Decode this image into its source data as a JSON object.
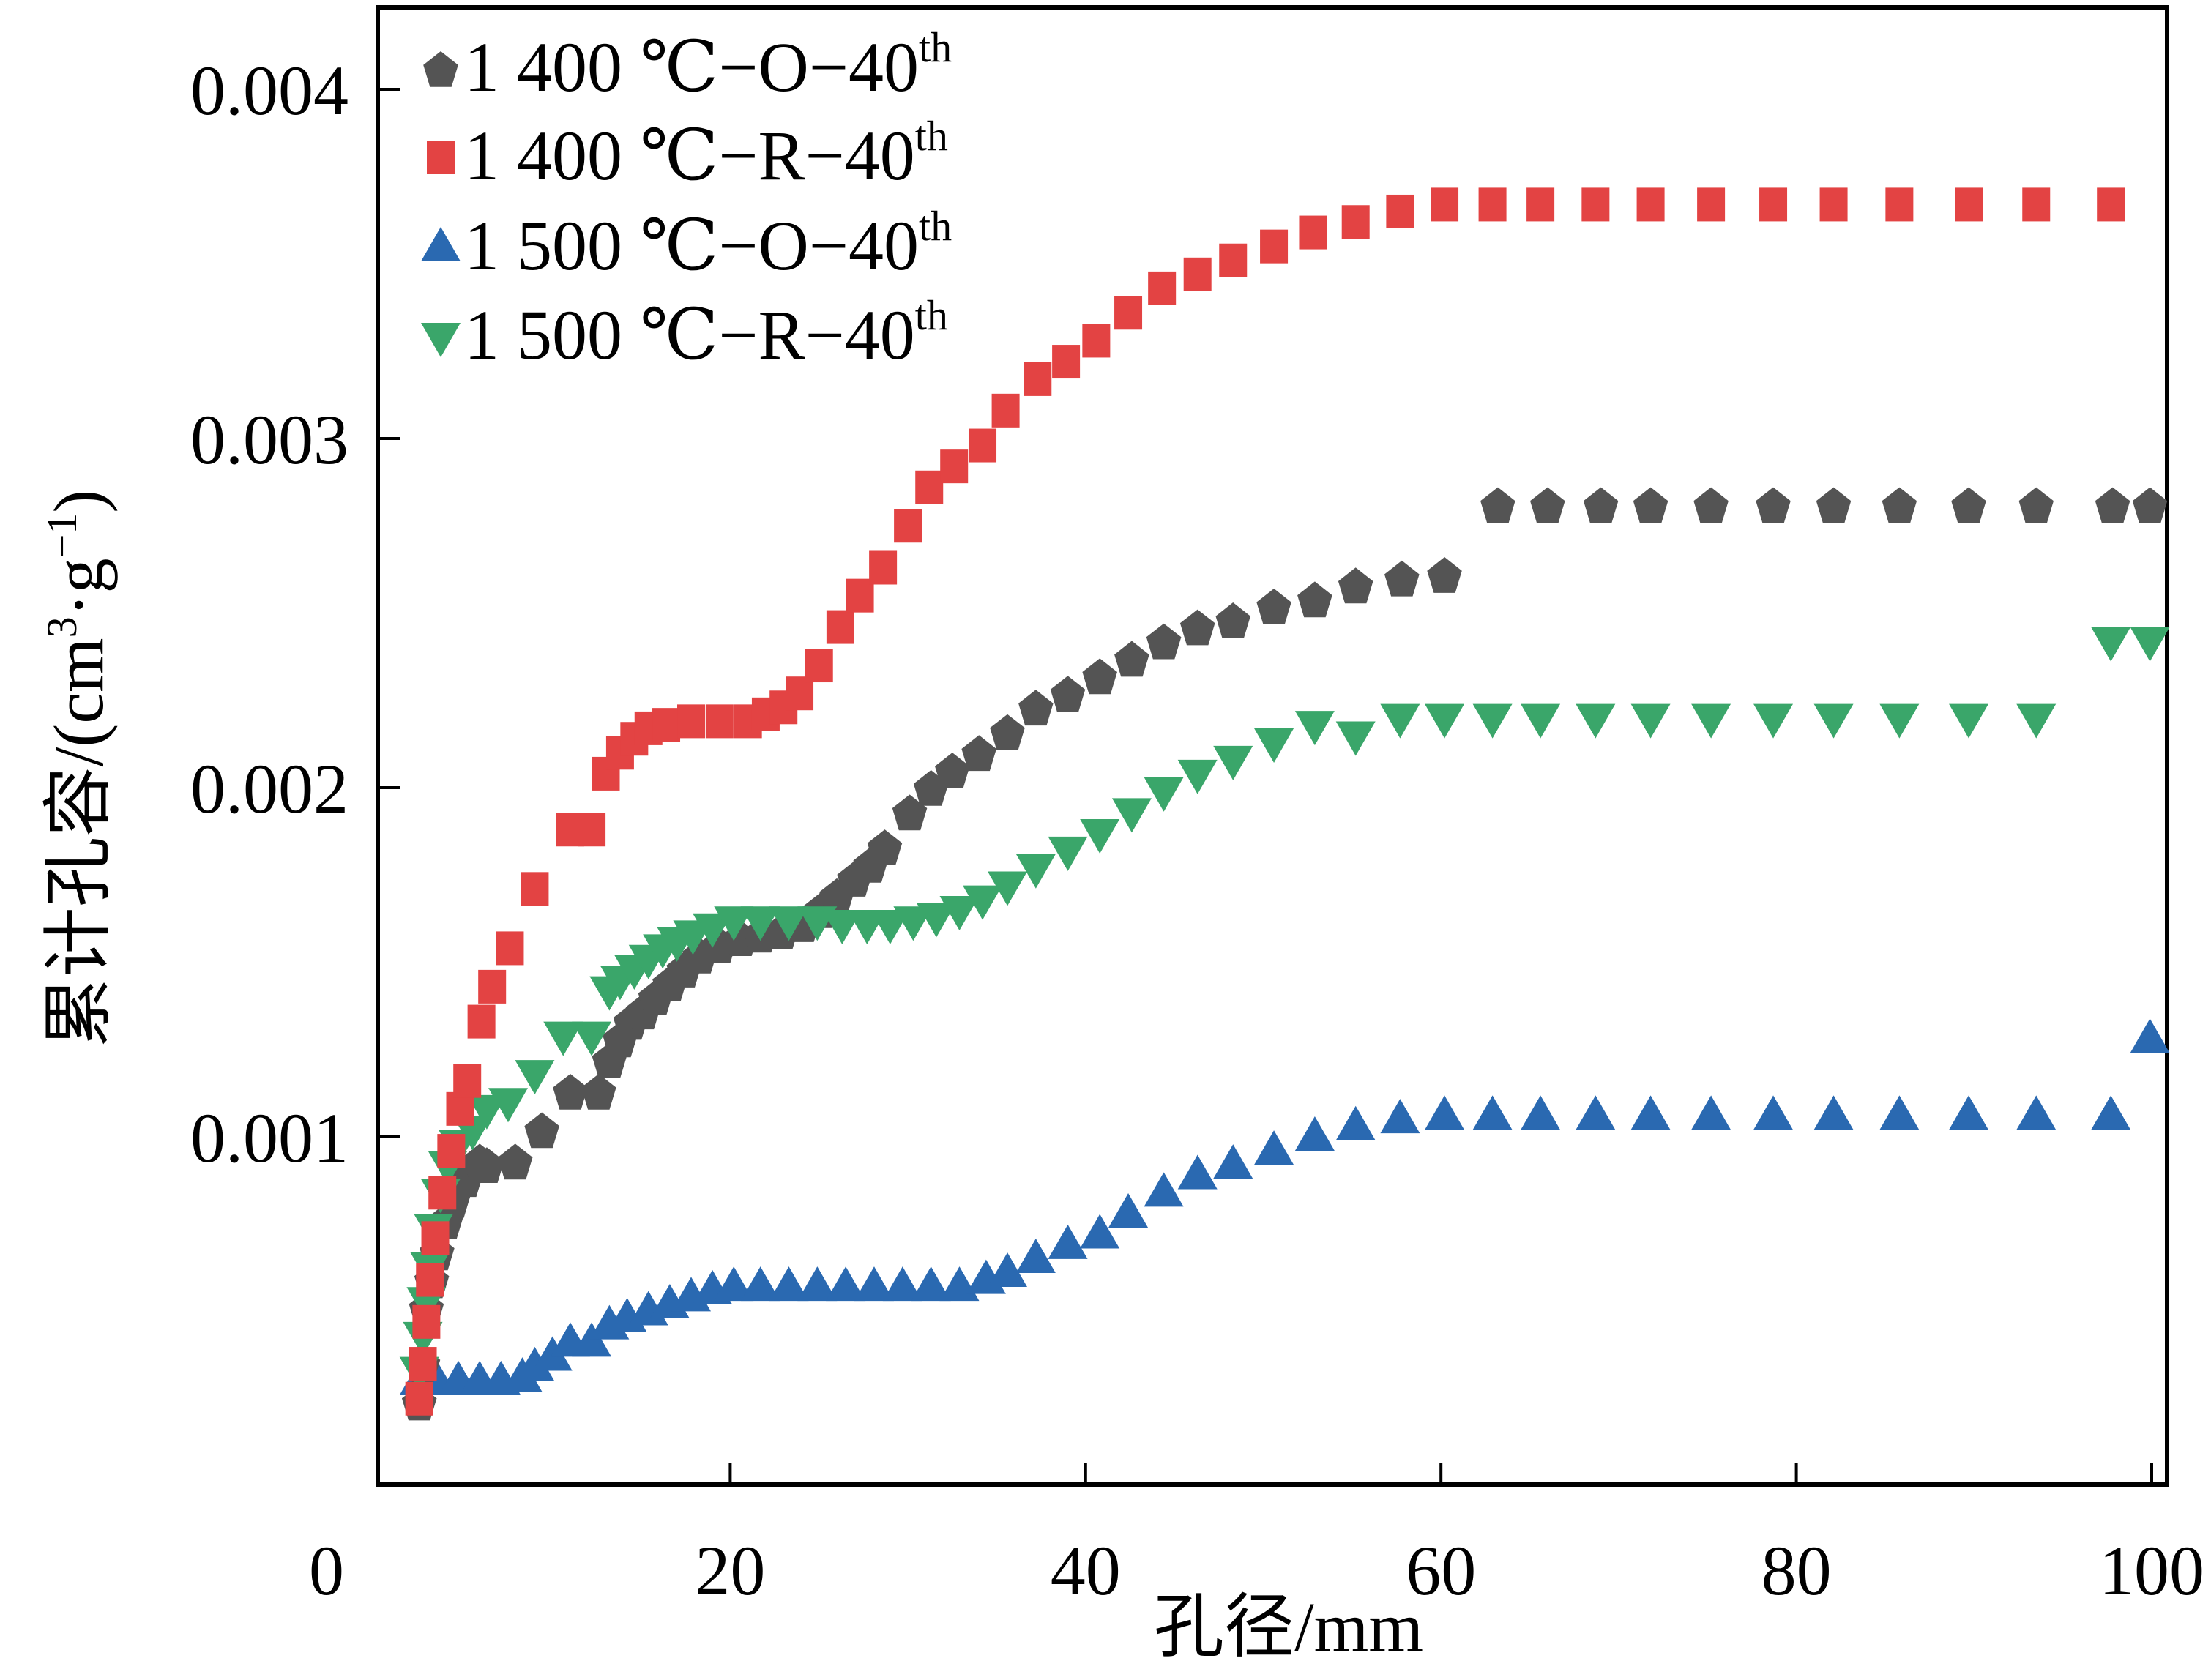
{
  "chart_data": {
    "type": "scatter",
    "title": "",
    "xlabel": "孔径/mm",
    "ylabel_main": "累计孔容/(cm",
    "ylabel_sup1": "3",
    "ylabel_mid": "·g",
    "ylabel_sup2": "−1",
    "ylabel_end": ")",
    "ylabel": "累计孔容/(cm³·g⁻¹)",
    "xlim": [
      0,
      100.9
    ],
    "ylim": [
      0,
      0.00424
    ],
    "xticks": [
      0,
      20,
      40,
      60,
      80,
      100
    ],
    "xtick_labels": [
      "0",
      "20",
      "40",
      "60",
      "80",
      "100"
    ],
    "yticks": [
      0.001,
      0.002,
      0.003,
      0.004
    ],
    "ytick_labels": [
      "0.001",
      "0.002",
      "0.003",
      "0.004"
    ],
    "grid": false,
    "legend_position": "top-left",
    "series": [
      {
        "name": "1 400 ℃−O−40th",
        "label_main": "1 400 ℃−O−40",
        "label_sup": "th",
        "marker": "pentagon",
        "color": "#545454",
        "x": [
          2.5,
          2.7,
          2.9,
          3.2,
          3.5,
          4.0,
          4.4,
          5.1,
          5.9,
          6.3,
          7.9,
          9.4,
          11.0,
          12.6,
          13.2,
          13.8,
          14.4,
          15.1,
          15.8,
          16.6,
          17.4,
          18.3,
          19.4,
          20.6,
          21.7,
          22.9,
          24.1,
          25.1,
          26.0,
          27.0,
          27.9,
          28.7,
          30.1,
          31.3,
          32.5,
          34.0,
          35.6,
          37.2,
          39.0,
          40.8,
          42.6,
          44.4,
          46.3,
          48.3,
          50.6,
          52.9,
          55.2,
          57.8,
          60.2,
          63.2,
          66.0,
          69.0,
          71.8,
          75.2,
          78.7,
          82.1,
          85.8,
          89.7,
          93.5,
          97.8,
          99.9
        ],
        "y": [
          0.00024,
          0.00035,
          0.00051,
          0.00059,
          0.00067,
          0.00076,
          0.00082,
          0.00088,
          0.00093,
          0.00092,
          0.00093,
          0.00102,
          0.00113,
          0.00113,
          0.00122,
          0.00128,
          0.00133,
          0.00136,
          0.0014,
          0.00144,
          0.00148,
          0.00152,
          0.00155,
          0.00157,
          0.00158,
          0.00159,
          0.00161,
          0.00165,
          0.00169,
          0.00174,
          0.00178,
          0.00183,
          0.00193,
          0.002,
          0.00205,
          0.0021,
          0.00216,
          0.00223,
          0.00227,
          0.00232,
          0.00237,
          0.00242,
          0.00246,
          0.00248,
          0.00252,
          0.00254,
          0.00258,
          0.0026,
          0.00261,
          0.00281,
          0.00281,
          0.00281,
          0.00281,
          0.00281,
          0.00281,
          0.00281,
          0.00281,
          0.00281,
          0.00281,
          0.00281,
          0.00281
        ]
      },
      {
        "name": "1 400 ℃−R−40th",
        "label_main": "1 400 ℃−R−40",
        "label_sup": "th",
        "marker": "square",
        "color": "#e34343",
        "x": [
          2.5,
          2.7,
          2.9,
          3.1,
          3.4,
          3.8,
          4.3,
          4.8,
          5.2,
          6.0,
          6.6,
          7.6,
          9.0,
          11.0,
          12.2,
          13.0,
          13.8,
          14.6,
          15.4,
          16.4,
          17.8,
          19.4,
          21.0,
          22.0,
          23.0,
          23.9,
          25.0,
          26.2,
          27.3,
          28.6,
          30.0,
          31.2,
          32.6,
          34.2,
          35.5,
          37.3,
          38.9,
          40.6,
          42.4,
          44.3,
          46.3,
          48.3,
          50.6,
          52.8,
          55.2,
          57.7,
          60.2,
          62.9,
          65.6,
          68.7,
          71.8,
          75.2,
          78.7,
          82.1,
          85.8,
          89.7,
          93.5,
          97.7
        ],
        "y": [
          0.00025,
          0.00035,
          0.00047,
          0.00059,
          0.00071,
          0.00084,
          0.00096,
          0.00108,
          0.00116,
          0.00133,
          0.00143,
          0.00154,
          0.00171,
          0.00188,
          0.00188,
          0.00204,
          0.0021,
          0.00214,
          0.00217,
          0.00218,
          0.00219,
          0.00219,
          0.00219,
          0.00221,
          0.00223,
          0.00227,
          0.00235,
          0.00246,
          0.00255,
          0.00263,
          0.00275,
          0.00286,
          0.00292,
          0.00298,
          0.00308,
          0.00317,
          0.00322,
          0.00328,
          0.00336,
          0.00343,
          0.00347,
          0.00351,
          0.00355,
          0.00359,
          0.00362,
          0.00365,
          0.00367,
          0.00367,
          0.00367,
          0.00367,
          0.00367,
          0.00367,
          0.00367,
          0.00367,
          0.00367,
          0.00367,
          0.00367,
          0.00367
        ]
      },
      {
        "name": "1 500 ℃−O−40th",
        "label_main": "1 500 ℃−O−40",
        "label_sup": "th",
        "marker": "triangle-up",
        "color": "#2a69b1",
        "x": [
          2.5,
          3.5,
          4.7,
          5.9,
          7.1,
          8.3,
          9.0,
          10.0,
          11.0,
          12.2,
          13.2,
          14.2,
          15.4,
          16.6,
          17.8,
          19.0,
          20.2,
          21.7,
          23.3,
          24.9,
          26.5,
          28.1,
          29.7,
          31.3,
          32.9,
          34.4,
          35.6,
          37.2,
          39.0,
          40.8,
          42.4,
          44.4,
          46.3,
          48.3,
          50.6,
          52.9,
          55.2,
          57.7,
          60.2,
          62.9,
          65.6,
          68.7,
          71.8,
          75.2,
          78.7,
          82.1,
          85.8,
          89.7,
          93.5,
          97.7,
          99.9
        ],
        "y": [
          0.0003,
          0.0003,
          0.0003,
          0.0003,
          0.0003,
          0.00031,
          0.00034,
          0.00037,
          0.00041,
          0.00041,
          0.00046,
          0.00048,
          0.0005,
          0.00052,
          0.00054,
          0.00056,
          0.00057,
          0.00057,
          0.00057,
          0.00057,
          0.00057,
          0.00057,
          0.00057,
          0.00057,
          0.00057,
          0.00059,
          0.00061,
          0.00065,
          0.00069,
          0.00072,
          0.00078,
          0.00084,
          0.00089,
          0.00092,
          0.00096,
          0.001,
          0.00103,
          0.00105,
          0.00106,
          0.00106,
          0.00106,
          0.00106,
          0.00106,
          0.00106,
          0.00106,
          0.00106,
          0.00106,
          0.00106,
          0.00106,
          0.00106,
          0.00128
        ]
      },
      {
        "name": "1 500 ℃−R−40th",
        "label_main": "1 500 ℃−R−40",
        "label_sup": "th",
        "marker": "triangle-down",
        "color": "#3aa66a",
        "x": [
          2.5,
          2.7,
          2.9,
          3.1,
          3.3,
          3.7,
          4.1,
          4.7,
          5.5,
          6.3,
          7.5,
          9.0,
          10.6,
          12.2,
          13.2,
          13.8,
          14.6,
          15.4,
          16.2,
          17.0,
          17.9,
          19.0,
          20.2,
          21.7,
          23.3,
          24.9,
          26.3,
          27.7,
          29.0,
          30.3,
          31.6,
          32.9,
          34.2,
          35.6,
          37.2,
          39.0,
          40.8,
          42.6,
          44.4,
          46.3,
          48.3,
          50.6,
          52.9,
          55.2,
          57.7,
          60.2,
          62.9,
          65.6,
          68.7,
          71.8,
          75.2,
          78.7,
          82.1,
          85.8,
          89.7,
          93.5,
          97.7,
          99.9
        ],
        "y": [
          0.00033,
          0.00043,
          0.00053,
          0.00063,
          0.00074,
          0.00084,
          0.00092,
          0.00098,
          0.00102,
          0.00108,
          0.0011,
          0.00118,
          0.00129,
          0.00129,
          0.00142,
          0.00145,
          0.00148,
          0.00151,
          0.00154,
          0.00156,
          0.00158,
          0.0016,
          0.00162,
          0.00162,
          0.00162,
          0.00162,
          0.00161,
          0.00161,
          0.00161,
          0.00162,
          0.00163,
          0.00165,
          0.00168,
          0.00172,
          0.00177,
          0.00182,
          0.00187,
          0.00193,
          0.00199,
          0.00204,
          0.00208,
          0.00213,
          0.00218,
          0.00215,
          0.0022,
          0.0022,
          0.0022,
          0.0022,
          0.0022,
          0.0022,
          0.0022,
          0.0022,
          0.0022,
          0.0022,
          0.0022,
          0.0022,
          0.00242,
          0.00242
        ]
      }
    ]
  }
}
